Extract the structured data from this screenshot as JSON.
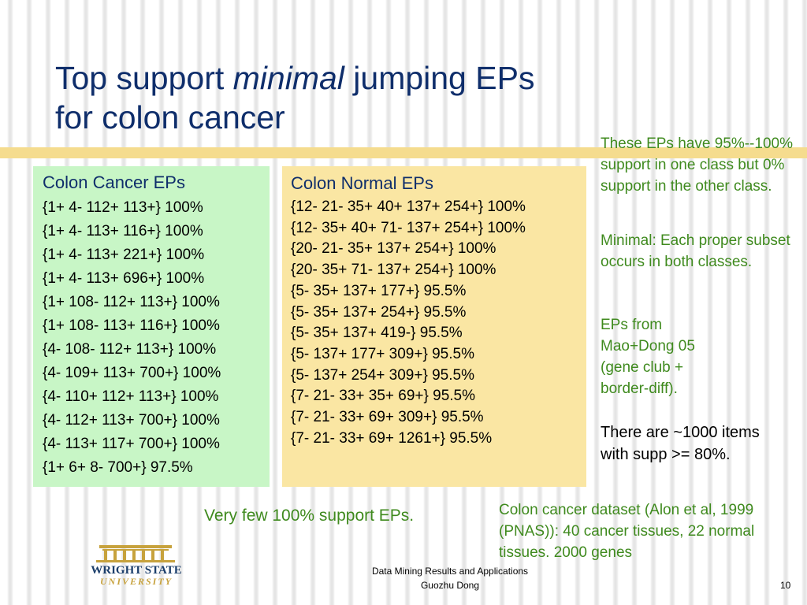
{
  "slide": {
    "title_line1_pre": "Top support ",
    "title_line1_em": "minimal",
    "title_line1_post": " jumping EPs",
    "title_line2": "for colon cancer"
  },
  "cancer_box": {
    "heading": "Colon Cancer EPs",
    "items": [
      "{1+ 4- 112+ 113+} 100%",
      "{1+ 4- 113+ 116+} 100%",
      "{1+ 4- 113+ 221+} 100%",
      "{1+ 4- 113+ 696+} 100%",
      "{1+ 108- 112+ 113+} 100%",
      "{1+ 108- 113+ 116+} 100%",
      "{4- 108- 112+ 113+} 100%",
      "{4- 109+ 113+ 700+} 100%",
      "{4- 110+ 112+ 113+} 100%",
      "{4- 112+ 113+ 700+} 100%",
      "{4- 113+ 117+ 700+} 100%",
      "{1+ 6+ 8- 700+} 97.5%"
    ]
  },
  "normal_box": {
    "heading": "Colon Normal EPs",
    "items": [
      "{12- 21- 35+ 40+ 137+ 254+} 100%",
      "{12- 35+ 40+ 71- 137+ 254+} 100%",
      "{20- 21- 35+ 137+ 254+} 100%",
      "{20- 35+ 71- 137+ 254+} 100%",
      "{5- 35+ 137+ 177+} 95.5%",
      "{5- 35+ 137+ 254+} 95.5%",
      "{5- 35+ 137+ 419-} 95.5%",
      "{5- 137+ 177+ 309+} 95.5%",
      "{5- 137+ 254+ 309+} 95.5%",
      "{7- 21- 33+ 35+ 69+} 95.5%",
      "{7- 21- 33+ 69+ 309+} 95.5%",
      "{7- 21- 33+ 69+ 1261+} 95.5%"
    ]
  },
  "notes": {
    "support": "These EPs have 95%--100% support in one class but 0% support in the other class.",
    "minimal": "Minimal: Each proper subset occurs in both classes.",
    "source": "EPs from Mao+Dong 05 (gene club + border-diff).",
    "count": "There are ~1000 items with supp >= 80%."
  },
  "footnotes": {
    "few": "Very few 100% support EPs.",
    "dataset": "Colon cancer dataset (Alon et al, 1999 (PNAS)): 40 cancer tissues, 22 normal tissues. 2000 genes"
  },
  "footer": {
    "line1": "Data Mining Results and Applications",
    "line2": "Guozhu Dong",
    "page": "10"
  },
  "logo": {
    "line1": "WRIGHT STATE",
    "line2": "UNIVERSITY"
  },
  "colors": {
    "title": "#0f2e6b",
    "green_text": "#3f8a1e",
    "cancer_box": "#c8f6c6",
    "normal_box": "#fae6a3",
    "gold_bar": "#f5dc8e"
  }
}
